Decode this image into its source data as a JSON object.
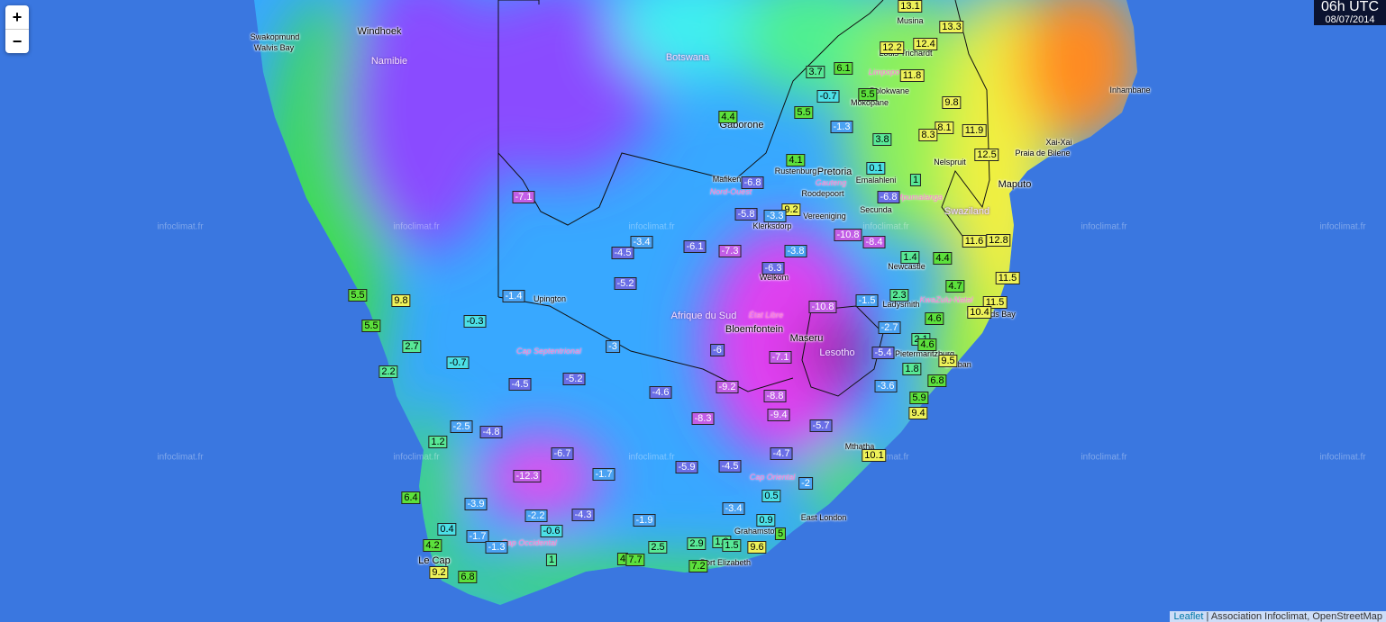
{
  "controls": {
    "zoom_in": "+",
    "zoom_out": "−"
  },
  "timestamp": {
    "time": "06h UTC",
    "date": "08/07/2014"
  },
  "temperatures": [
    13.1,
    13.3,
    12.2,
    12.4,
    3.7,
    6.1,
    11.8,
    -0.7,
    5.5,
    9.8,
    4.4,
    5.5,
    -1.3,
    8.1,
    11.9,
    3.8,
    8.3,
    12.5,
    4.1,
    0.1,
    1,
    -6.8,
    -6.8,
    -7.1,
    9.2,
    -5.8,
    -3.3,
    -10.8,
    -8.4,
    11.6,
    12.8,
    -3.4,
    -6.1,
    -4.5,
    -7.3,
    -3.8,
    1.4,
    4.4,
    -6.3,
    -5.2,
    11.5,
    4.7,
    5.5,
    9.8,
    -1.4,
    2.3,
    -1.5,
    -10.8,
    11.5,
    10.4,
    -0.3,
    4.6,
    -2.7,
    5.5,
    2.7,
    -3,
    -6,
    2.1,
    4.6,
    -7.1,
    -5.4,
    9.5,
    -0.7,
    1.8,
    2.2,
    -4.5,
    -5.2,
    6.8,
    -9.2,
    -3.6,
    -4.6,
    -8.8,
    5.9,
    9.4,
    -9.4,
    -8.3,
    -5.7,
    -2.5,
    -4.8,
    1.2,
    -6.7,
    -4.7,
    10.1,
    -12.3,
    -1.7,
    -5.9,
    -4.5,
    -2,
    0.5,
    6.4,
    -3.9,
    -3.4,
    -2.2,
    -4.3,
    -1.9,
    0.9,
    -0.6,
    0.4,
    -1.7,
    5,
    4.2,
    -1.3,
    2.5,
    2.9,
    1.9,
    1.5,
    9.6,
    1,
    4,
    7.7,
    7.2,
    9.2,
    6.8
  ],
  "countries": [
    "Namibie",
    "Botswana",
    "Afrique du Sud",
    "Swaziland",
    "Lesotho"
  ],
  "cities": [
    "Windhoek",
    "Swakopmund",
    "Walvis Bay",
    "Musina",
    "Louis Trichardt",
    "Polokwane",
    "Mokopane",
    "Gaborone",
    "Inhambane",
    "Xai-Xai",
    "Praia de Bilene",
    "Nelspruit",
    "Rustenburg",
    "Pretoria",
    "Emalahleni",
    "Mafikeng",
    "Roodepoort",
    "Maputo",
    "Secunda",
    "Vereeniging",
    "Klerksdorp",
    "Newcastle",
    "Welkom",
    "Upington",
    "Ladysmith",
    "Richards Bay",
    "Bloemfontein",
    "Maseru",
    "Pietermaritzburg",
    "Durban",
    "Mthatha",
    "East London",
    "Grahamstown",
    "Le Cap",
    "Port Elizabeth"
  ],
  "regions": [
    "Limpopo",
    "Gauteng",
    "Nord-Ouest",
    "Mpumalanga",
    "KwaZulu-Natal",
    "État Libre",
    "Cap Septentrional",
    "Cap Oriental",
    "Cap Occidental"
  ],
  "watermark": "infoclimat.fr",
  "attribution": {
    "link": "Leaflet",
    "text": "| Association Infoclimat, OpenStreetMap"
  }
}
